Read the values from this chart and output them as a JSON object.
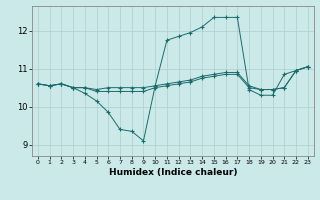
{
  "title": "",
  "xlabel": "Humidex (Indice chaleur)",
  "ylabel": "",
  "background_color": "#cce9e9",
  "grid_color": "#b0cccc",
  "line_color": "#1a6b6b",
  "xlim": [
    -0.5,
    23.5
  ],
  "ylim": [
    8.7,
    12.65
  ],
  "yticks": [
    9,
    10,
    11,
    12
  ],
  "xticks": [
    0,
    1,
    2,
    3,
    4,
    5,
    6,
    7,
    8,
    9,
    10,
    11,
    12,
    13,
    14,
    15,
    16,
    17,
    18,
    19,
    20,
    21,
    22,
    23
  ],
  "lines": [
    [
      10.6,
      10.55,
      10.6,
      10.5,
      10.35,
      10.15,
      9.85,
      9.4,
      9.35,
      9.1,
      10.55,
      11.75,
      11.85,
      11.95,
      12.1,
      12.35,
      12.35,
      12.35,
      10.45,
      10.3,
      10.3,
      10.85,
      10.95,
      11.05
    ],
    [
      10.6,
      10.55,
      10.6,
      10.5,
      10.5,
      10.4,
      10.4,
      10.4,
      10.4,
      10.4,
      10.5,
      10.55,
      10.6,
      10.65,
      10.75,
      10.8,
      10.85,
      10.85,
      10.5,
      10.45,
      10.45,
      10.5,
      10.95,
      11.05
    ],
    [
      10.6,
      10.55,
      10.6,
      10.5,
      10.5,
      10.45,
      10.5,
      10.5,
      10.5,
      10.5,
      10.55,
      10.6,
      10.65,
      10.7,
      10.8,
      10.85,
      10.9,
      10.9,
      10.55,
      10.45,
      10.45,
      10.5,
      10.95,
      11.05
    ]
  ],
  "figsize": [
    3.2,
    2.0
  ],
  "dpi": 100
}
